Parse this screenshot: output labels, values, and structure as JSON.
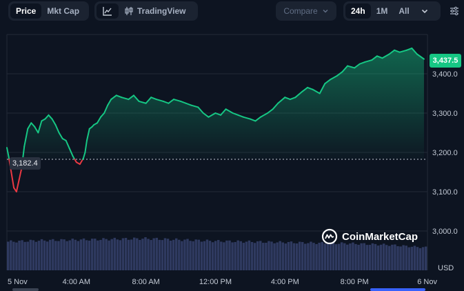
{
  "toolbar": {
    "type_toggle": [
      "Price",
      "Mkt Cap"
    ],
    "active_type": "Price",
    "line_icon": "line-chart-icon",
    "tradingview_icon": "candlestick-icon",
    "tradingview_label": "TradingView",
    "compare_label": "Compare",
    "compare_icon": "chevron-down-icon",
    "ranges": [
      "24h",
      "1M",
      "All"
    ],
    "active_range": "24h",
    "range_more_icon": "chevron-down-icon",
    "settings_icon": "sliders-icon"
  },
  "colors": {
    "background": "#0d1421",
    "up": "#16c784",
    "down": "#ea3943",
    "volume": "#2f3a60",
    "grid": "#222a38"
  },
  "watermark": {
    "logo_icon": "coinmarketcap-logo-icon",
    "text": "CoinMarketCap"
  },
  "chart_data": {
    "type": "area",
    "currency": "USD",
    "current_price_label": "3,437.5",
    "open_price_label": "3,182.4",
    "open_price": 3182.4,
    "current_price": 3437.5,
    "x_ticks": [
      "5 Nov",
      "4:00 AM",
      "8:00 AM",
      "12:00 PM",
      "4:00 PM",
      "8:00 PM",
      "6 Nov"
    ],
    "x_tick_hours": [
      0,
      4,
      8,
      12,
      16,
      20,
      24
    ],
    "y_ticks": [
      {
        "value": 3000,
        "label": "3,000.0"
      },
      {
        "value": 3100,
        "label": "3,100.0"
      },
      {
        "value": 3200,
        "label": "3,200.0"
      },
      {
        "value": 3300,
        "label": "3,300.0"
      },
      {
        "value": 3400,
        "label": "3,400.0"
      }
    ],
    "ylim": [
      2900,
      3500
    ],
    "xlim": [
      0,
      24.2
    ],
    "grid": true,
    "price_series": {
      "hours": [
        0,
        0.1,
        0.25,
        0.4,
        0.55,
        0.7,
        0.85,
        1.0,
        1.2,
        1.4,
        1.6,
        1.8,
        2.0,
        2.2,
        2.4,
        2.6,
        2.8,
        3.0,
        3.2,
        3.4,
        3.6,
        3.8,
        4.0,
        4.2,
        4.4,
        4.5,
        4.6,
        4.75,
        4.9,
        5.0,
        5.2,
        5.4,
        5.6,
        5.8,
        6.0,
        6.3,
        6.6,
        7.0,
        7.3,
        7.6,
        8.0,
        8.3,
        8.6,
        9.0,
        9.3,
        9.6,
        10.0,
        10.3,
        10.6,
        11.0,
        11.3,
        11.6,
        12.0,
        12.3,
        12.6,
        13.0,
        13.3,
        13.6,
        14.0,
        14.3,
        14.6,
        15.0,
        15.3,
        15.6,
        16.0,
        16.3,
        16.6,
        17.0,
        17.3,
        17.6,
        18.0,
        18.3,
        18.6,
        19.0,
        19.3,
        19.6,
        20.0,
        20.3,
        20.6,
        21.0,
        21.3,
        21.6,
        22.0,
        22.3,
        22.6,
        23.0,
        23.3,
        23.6,
        24.0
      ],
      "prices": [
        3212,
        3190,
        3150,
        3110,
        3100,
        3130,
        3160,
        3215,
        3260,
        3275,
        3265,
        3250,
        3280,
        3285,
        3295,
        3285,
        3270,
        3250,
        3235,
        3230,
        3210,
        3190,
        3175,
        3170,
        3185,
        3200,
        3230,
        3260,
        3265,
        3270,
        3275,
        3290,
        3300,
        3320,
        3335,
        3345,
        3340,
        3335,
        3345,
        3330,
        3325,
        3340,
        3335,
        3330,
        3325,
        3335,
        3330,
        3325,
        3320,
        3315,
        3300,
        3290,
        3300,
        3295,
        3310,
        3300,
        3295,
        3290,
        3285,
        3280,
        3290,
        3300,
        3310,
        3325,
        3340,
        3335,
        3340,
        3355,
        3365,
        3360,
        3350,
        3375,
        3385,
        3395,
        3405,
        3420,
        3415,
        3425,
        3430,
        3435,
        3445,
        3440,
        3450,
        3460,
        3455,
        3460,
        3465,
        3450,
        3437.5
      ]
    },
    "volume_series": {
      "hours": [
        0,
        2,
        4,
        6,
        8,
        10,
        12,
        14,
        16,
        18,
        20,
        22,
        24
      ],
      "values": [
        45,
        47,
        48,
        49,
        50,
        48,
        46,
        45,
        44,
        43,
        42,
        40,
        36
      ]
    },
    "volume_max": 50
  }
}
